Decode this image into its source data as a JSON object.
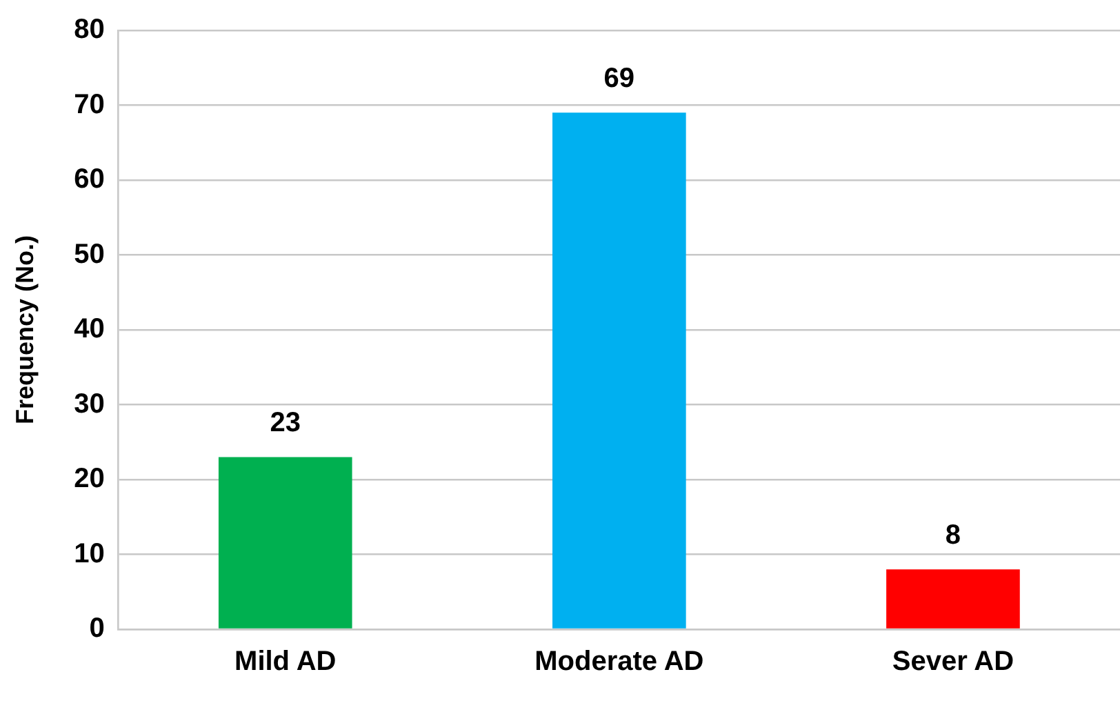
{
  "chart_data": {
    "type": "bar",
    "ylabel": "Frequency (No.)",
    "categories": [
      "Mild AD",
      "Moderate AD",
      "Sever AD"
    ],
    "values": [
      23,
      69,
      8
    ],
    "colors": [
      "#00b050",
      "#00b0f0",
      "#ff0000"
    ],
    "ylim": [
      0,
      80
    ],
    "yticks": [
      0,
      10,
      20,
      30,
      40,
      50,
      60,
      70,
      80
    ],
    "grid": "y",
    "data_labels": true,
    "legend": false
  }
}
